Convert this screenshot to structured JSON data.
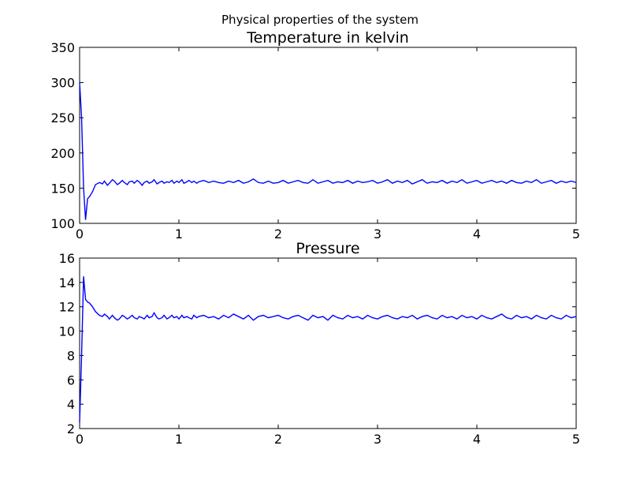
{
  "figure": {
    "suptitle": "Physical properties of the system"
  },
  "chart_data": [
    {
      "type": "line",
      "title": "Temperature in kelvin",
      "xlabel": "",
      "ylabel": "",
      "xlim": [
        0,
        5
      ],
      "ylim": [
        100,
        350
      ],
      "xticks": [
        "0",
        "1",
        "2",
        "3",
        "4",
        "5"
      ],
      "yticks": [
        "100",
        "150",
        "200",
        "250",
        "300",
        "350"
      ],
      "grid": false,
      "line_color": "#0000ff",
      "series": [
        {
          "x": [
            0,
            0.02,
            0.04,
            0.06,
            0.08,
            0.1,
            0.13,
            0.16,
            0.2,
            0.23,
            0.25,
            0.28,
            0.3,
            0.33,
            0.35,
            0.38,
            0.4,
            0.43,
            0.45,
            0.48,
            0.5,
            0.53,
            0.55,
            0.58,
            0.6,
            0.63,
            0.65,
            0.68,
            0.7,
            0.73,
            0.75,
            0.78,
            0.8,
            0.83,
            0.85,
            0.88,
            0.9,
            0.93,
            0.95,
            0.98,
            1.0,
            1.03,
            1.05,
            1.08,
            1.1,
            1.13,
            1.15,
            1.18,
            1.2,
            1.25,
            1.3,
            1.35,
            1.4,
            1.45,
            1.5,
            1.55,
            1.6,
            1.65,
            1.7,
            1.75,
            1.8,
            1.85,
            1.9,
            1.95,
            2.0,
            2.05,
            2.1,
            2.15,
            2.2,
            2.25,
            2.3,
            2.35,
            2.4,
            2.45,
            2.5,
            2.55,
            2.6,
            2.65,
            2.7,
            2.75,
            2.8,
            2.85,
            2.9,
            2.95,
            3.0,
            3.05,
            3.1,
            3.15,
            3.2,
            3.25,
            3.3,
            3.35,
            3.4,
            3.45,
            3.5,
            3.55,
            3.6,
            3.65,
            3.7,
            3.75,
            3.8,
            3.85,
            3.9,
            3.95,
            4.0,
            4.05,
            4.1,
            4.15,
            4.2,
            4.25,
            4.3,
            4.35,
            4.4,
            4.45,
            4.5,
            4.55,
            4.6,
            4.65,
            4.7,
            4.75,
            4.8,
            4.85,
            4.9,
            4.95,
            5.0
          ],
          "y": [
            300,
            250,
            150,
            105,
            135,
            138,
            145,
            155,
            158,
            156,
            160,
            154,
            157,
            162,
            160,
            155,
            157,
            161,
            158,
            155,
            159,
            160,
            157,
            161,
            159,
            154,
            158,
            160,
            157,
            159,
            162,
            156,
            158,
            160,
            157,
            159,
            158,
            161,
            157,
            160,
            158,
            162,
            157,
            159,
            161,
            158,
            160,
            157,
            159,
            161,
            158,
            160,
            158,
            157,
            160,
            158,
            161,
            157,
            159,
            163,
            158,
            157,
            160,
            157,
            158,
            161,
            157,
            159,
            161,
            158,
            157,
            162,
            157,
            159,
            161,
            157,
            159,
            158,
            161,
            157,
            160,
            158,
            159,
            161,
            157,
            159,
            162,
            157,
            160,
            158,
            161,
            156,
            159,
            162,
            157,
            159,
            158,
            161,
            157,
            160,
            158,
            162,
            157,
            159,
            161,
            157,
            159,
            161,
            158,
            160,
            157,
            161,
            158,
            157,
            160,
            158,
            162,
            157,
            159,
            161,
            157,
            160,
            158,
            160,
            158
          ]
        }
      ]
    },
    {
      "type": "line",
      "title": "Pressure",
      "xlabel": "",
      "ylabel": "",
      "xlim": [
        0,
        5
      ],
      "ylim": [
        2,
        16
      ],
      "xticks": [
        "0",
        "1",
        "2",
        "3",
        "4",
        "5"
      ],
      "yticks": [
        "2",
        "4",
        "6",
        "8",
        "10",
        "12",
        "14",
        "16"
      ],
      "grid": false,
      "line_color": "#0000ff",
      "series": [
        {
          "x": [
            0,
            0.02,
            0.04,
            0.06,
            0.08,
            0.1,
            0.13,
            0.16,
            0.2,
            0.23,
            0.25,
            0.28,
            0.3,
            0.33,
            0.35,
            0.38,
            0.4,
            0.43,
            0.45,
            0.48,
            0.5,
            0.53,
            0.55,
            0.58,
            0.6,
            0.63,
            0.65,
            0.68,
            0.7,
            0.73,
            0.75,
            0.78,
            0.8,
            0.83,
            0.85,
            0.88,
            0.9,
            0.93,
            0.95,
            0.98,
            1.0,
            1.03,
            1.05,
            1.08,
            1.1,
            1.13,
            1.15,
            1.18,
            1.2,
            1.25,
            1.3,
            1.35,
            1.4,
            1.45,
            1.5,
            1.55,
            1.6,
            1.65,
            1.7,
            1.75,
            1.8,
            1.85,
            1.9,
            1.95,
            2.0,
            2.05,
            2.1,
            2.15,
            2.2,
            2.25,
            2.3,
            2.35,
            2.4,
            2.45,
            2.5,
            2.55,
            2.6,
            2.65,
            2.7,
            2.75,
            2.8,
            2.85,
            2.9,
            2.95,
            3.0,
            3.05,
            3.1,
            3.15,
            3.2,
            3.25,
            3.3,
            3.35,
            3.4,
            3.45,
            3.5,
            3.55,
            3.6,
            3.65,
            3.7,
            3.75,
            3.8,
            3.85,
            3.9,
            3.95,
            4.0,
            4.05,
            4.1,
            4.15,
            4.2,
            4.25,
            4.3,
            4.35,
            4.4,
            4.45,
            4.5,
            4.55,
            4.6,
            4.65,
            4.7,
            4.75,
            4.8,
            4.85,
            4.9,
            4.95,
            5.0
          ],
          "y": [
            2.5,
            8.0,
            14.5,
            12.6,
            12.4,
            12.3,
            12.0,
            11.6,
            11.3,
            11.2,
            11.4,
            11.2,
            11.0,
            11.3,
            11.1,
            10.9,
            11.0,
            11.3,
            11.2,
            11.0,
            11.1,
            11.3,
            11.1,
            11.0,
            11.2,
            11.1,
            11.0,
            11.3,
            11.1,
            11.2,
            11.5,
            11.1,
            11.0,
            11.1,
            11.3,
            11.0,
            11.1,
            11.3,
            11.1,
            11.2,
            11.0,
            11.3,
            11.1,
            11.2,
            11.1,
            11.0,
            11.3,
            11.1,
            11.2,
            11.3,
            11.1,
            11.2,
            11.0,
            11.3,
            11.1,
            11.4,
            11.2,
            11.0,
            11.3,
            10.9,
            11.2,
            11.3,
            11.1,
            11.2,
            11.3,
            11.1,
            11.0,
            11.2,
            11.3,
            11.1,
            10.9,
            11.3,
            11.1,
            11.2,
            10.9,
            11.3,
            11.1,
            11.0,
            11.3,
            11.1,
            11.2,
            11.0,
            11.3,
            11.1,
            11.0,
            11.2,
            11.3,
            11.1,
            11.0,
            11.2,
            11.1,
            11.3,
            11.0,
            11.2,
            11.3,
            11.1,
            11.0,
            11.3,
            11.1,
            11.2,
            11.0,
            11.3,
            11.1,
            11.2,
            11.0,
            11.3,
            11.1,
            11.0,
            11.2,
            11.4,
            11.1,
            11.0,
            11.3,
            11.1,
            11.2,
            11.0,
            11.3,
            11.1,
            11.0,
            11.3,
            11.1,
            11.0,
            11.3,
            11.1,
            11.2
          ]
        }
      ]
    }
  ]
}
